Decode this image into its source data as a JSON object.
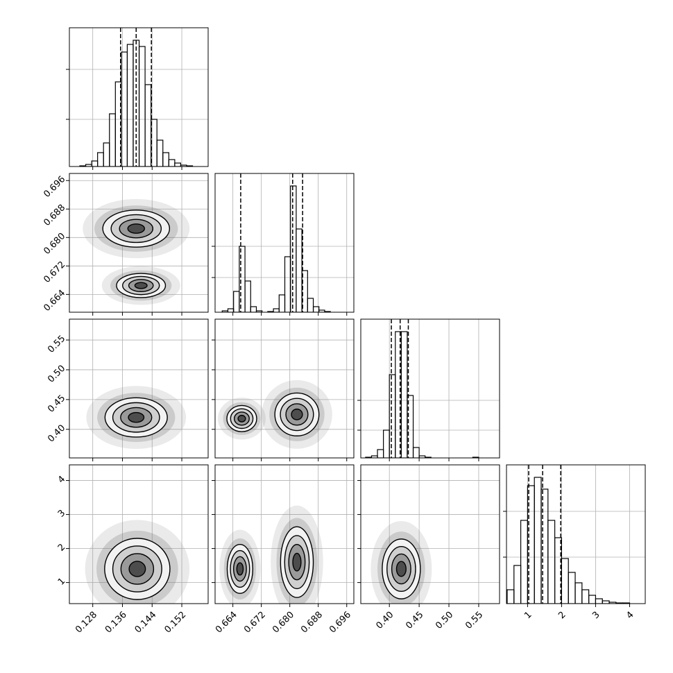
{
  "chart_data": {
    "type": "corner",
    "grid": true,
    "color": "#000000",
    "parameters": [
      {
        "lim": [
          0.1217,
          0.1591
        ],
        "ticks": [
          0.128,
          0.136,
          0.144,
          0.152
        ],
        "quantiles": [
          0.1355,
          0.1397,
          0.1438
        ],
        "hist": {
          "ylim": [
            0,
            200
          ],
          "yticks": [
            68,
            140
          ],
          "bins": [
            0.1245,
            0.1261,
            0.1277,
            0.1293,
            0.1309,
            0.1325,
            0.1341,
            0.1357,
            0.1373,
            0.1389,
            0.1405,
            0.1421,
            0.1437,
            0.1453,
            0.1469,
            0.1485,
            0.1501,
            0.1517,
            0.1533,
            0.1549,
            0.1565
          ],
          "counts": [
            1,
            3,
            8,
            20,
            34,
            76,
            122,
            165,
            176,
            182,
            173,
            118,
            68,
            38,
            20,
            10,
            5,
            2,
            1,
            0
          ]
        }
      },
      {
        "lim": [
          0.659,
          0.698
        ],
        "ticks": [
          0.664,
          0.672,
          {
            "value": 0.68,
            "label": "0.680"
          },
          0.688,
          0.696
        ],
        "quantiles": [
          0.6662,
          0.6808,
          0.6836
        ],
        "hist": {
          "ylim": [
            0,
            200
          ],
          "yticks": [
            50,
            95
          ],
          "bins": [
            0.661,
            0.6626,
            0.6642,
            0.6658,
            0.6674,
            0.669,
            0.6706,
            0.6722,
            0.6738,
            0.6754,
            0.677,
            0.6786,
            0.6802,
            0.6818,
            0.6834,
            0.685,
            0.6866,
            0.6882,
            0.6898,
            0.6914,
            0.693
          ],
          "counts": [
            2,
            5,
            30,
            95,
            45,
            8,
            2,
            0,
            1,
            5,
            25,
            80,
            182,
            120,
            60,
            20,
            8,
            3,
            1,
            0
          ]
        }
      },
      {
        "lim": [
          0.352,
          0.585
        ],
        "ticks": [
          {
            "value": 0.4,
            "label": "0.40"
          },
          0.45,
          {
            "value": 0.5,
            "label": "0.50"
          },
          0.55
        ],
        "quantiles": [
          0.4033,
          0.4181,
          0.4318
        ],
        "hist": {
          "ylim": [
            0,
            200
          ],
          "yticks": [
            40,
            83
          ],
          "bins": [
            0.36,
            0.37,
            0.38,
            0.39,
            0.4,
            0.41,
            0.42,
            0.43,
            0.44,
            0.45,
            0.46,
            0.47,
            0.48,
            0.49,
            0.5,
            0.51,
            0.52,
            0.53,
            0.54,
            0.55,
            0.56
          ],
          "counts": [
            1,
            3,
            12,
            40,
            120,
            182,
            182,
            90,
            15,
            3,
            1,
            0,
            0,
            0,
            0,
            0,
            0,
            0,
            1,
            0
          ]
        }
      },
      {
        "lim": [
          0.38,
          4.46
        ],
        "ticks": [
          1,
          2,
          3,
          4
        ],
        "quantiles": [
          1.034,
          1.443,
          1.975
        ],
        "hist": {
          "ylim": [
            0,
            200
          ],
          "yticks": [
            67,
            133
          ],
          "bins": [
            0.4,
            0.6,
            0.8,
            1.0,
            1.2,
            1.4,
            1.6,
            1.8,
            2.0,
            2.2,
            2.4,
            2.6,
            2.8,
            3.0,
            3.2,
            3.4,
            3.6,
            3.8,
            4.0,
            4.2,
            4.4
          ],
          "counts": [
            20,
            55,
            120,
            170,
            182,
            165,
            120,
            95,
            65,
            45,
            30,
            20,
            12,
            7,
            4,
            2,
            1,
            1,
            0,
            0
          ]
        }
      }
    ],
    "pairs": [
      {
        "x": 0,
        "y": 1,
        "modes": [
          {
            "center": [
              0.1397,
              0.6825
            ],
            "sigma": [
              0.0045,
              0.0026
            ]
          },
          {
            "center": [
              0.141,
              0.6665
            ],
            "sigma": [
              0.0033,
              0.0017
            ]
          }
        ]
      },
      {
        "x": 0,
        "y": 2,
        "modes": [
          {
            "center": [
              0.1397,
              0.42
            ],
            "sigma": [
              0.0042,
              0.0165
            ]
          }
        ]
      },
      {
        "x": 1,
        "y": 2,
        "modes": [
          {
            "center": [
              0.6665,
              0.418
            ],
            "sigma": [
              0.0021,
              0.011
            ]
          },
          {
            "center": [
              0.682,
              0.425
            ],
            "sigma": [
              0.0031,
              0.018
            ]
          }
        ]
      },
      {
        "x": 0,
        "y": 3,
        "modes": [
          {
            "center": [
              0.14,
              1.4
            ],
            "sigma": [
              0.0044,
              0.45
            ]
          }
        ]
      },
      {
        "x": 1,
        "y": 3,
        "modes": [
          {
            "center": [
              0.666,
              1.4
            ],
            "sigma": [
              0.0018,
              0.36
            ]
          },
          {
            "center": [
              0.682,
              1.6
            ],
            "sigma": [
              0.0023,
              0.52
            ]
          }
        ]
      },
      {
        "x": 2,
        "y": 3,
        "modes": [
          {
            "center": [
              0.42,
              1.4
            ],
            "sigma": [
              0.016,
              0.44
            ]
          }
        ]
      }
    ]
  }
}
